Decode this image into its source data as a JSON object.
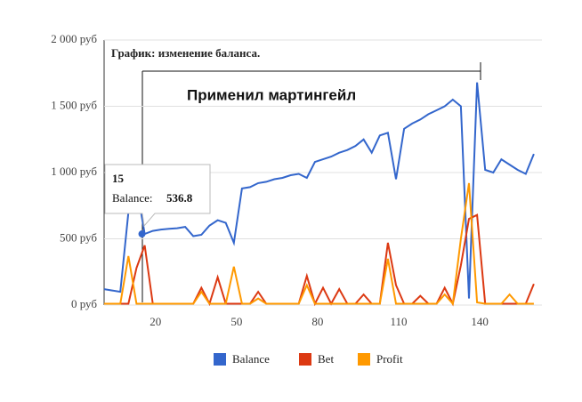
{
  "chart_data": {
    "type": "line",
    "title": "График: изменение баланса.",
    "annotation": "Применил мартингейл",
    "x": [
      1,
      4,
      7,
      10,
      13,
      16,
      19,
      22,
      25,
      28,
      31,
      34,
      37,
      40,
      43,
      46,
      49,
      52,
      55,
      58,
      61,
      64,
      67,
      70,
      73,
      76,
      79,
      82,
      85,
      88,
      91,
      94,
      97,
      100,
      103,
      106,
      109,
      112,
      115,
      118,
      121,
      124,
      127,
      130,
      133,
      136,
      139,
      142,
      145,
      148,
      151,
      154,
      157,
      160
    ],
    "series": [
      {
        "name": "Balance",
        "color": "#3366cc",
        "values": [
          120,
          110,
          100,
          700,
          900,
          537,
          560,
          570,
          575,
          580,
          590,
          520,
          530,
          600,
          640,
          620,
          470,
          880,
          890,
          920,
          930,
          950,
          960,
          980,
          990,
          960,
          1080,
          1100,
          1120,
          1150,
          1170,
          1200,
          1250,
          1150,
          1280,
          1300,
          950,
          1330,
          1370,
          1400,
          1440,
          1470,
          1500,
          1550,
          1500,
          50,
          1680,
          1020,
          1000,
          1100,
          1060,
          1020,
          990,
          1140
        ]
      },
      {
        "name": "Bet",
        "color": "#dc3912",
        "values": [
          10,
          10,
          10,
          10,
          280,
          450,
          10,
          10,
          10,
          10,
          10,
          10,
          130,
          10,
          210,
          10,
          10,
          10,
          10,
          100,
          10,
          10,
          10,
          10,
          10,
          220,
          10,
          130,
          10,
          120,
          10,
          10,
          80,
          10,
          10,
          470,
          150,
          10,
          10,
          70,
          10,
          10,
          130,
          10,
          300,
          650,
          680,
          10,
          10,
          10,
          10,
          10,
          10,
          160
        ]
      },
      {
        "name": "Profit",
        "color": "#ff9900",
        "values": [
          10,
          10,
          10,
          370,
          10,
          10,
          10,
          10,
          10,
          10,
          10,
          10,
          100,
          10,
          10,
          10,
          290,
          10,
          10,
          50,
          10,
          10,
          10,
          10,
          10,
          150,
          10,
          10,
          10,
          10,
          10,
          10,
          10,
          10,
          10,
          350,
          10,
          10,
          10,
          10,
          10,
          10,
          80,
          10,
          500,
          920,
          20,
          10,
          10,
          10,
          80,
          10,
          10,
          10
        ]
      }
    ],
    "xlim": [
      1,
      163
    ],
    "xticks": [
      20,
      50,
      80,
      110,
      140
    ],
    "ylim": [
      0,
      2000
    ],
    "yticks": [
      {
        "value": 0,
        "label": "0 руб"
      },
      {
        "value": 500,
        "label": "500 руб"
      },
      {
        "value": 1000,
        "label": "1 000 руб"
      },
      {
        "value": 1500,
        "label": "1 500 руб"
      },
      {
        "value": 2000,
        "label": "2 000 руб"
      }
    ],
    "tooltip": {
      "x": 15,
      "label": "Balance:",
      "value": 536.8
    }
  }
}
